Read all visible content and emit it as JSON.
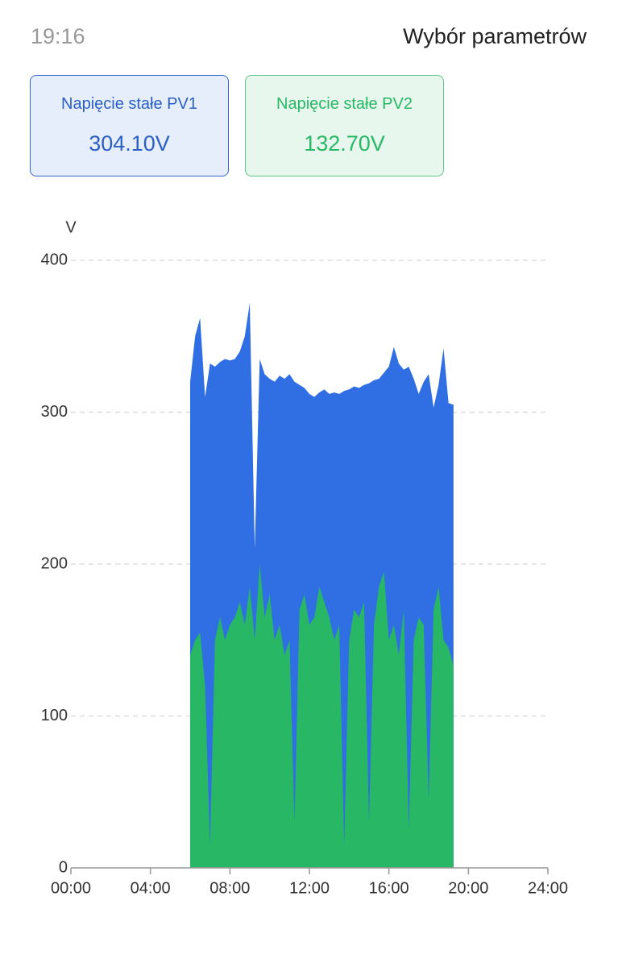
{
  "header": {
    "time": "19:16",
    "title": "Wybór parametrów"
  },
  "cards": [
    {
      "label": "Napięcie stałe PV1",
      "value": "304.10V"
    },
    {
      "label": "Napięcie stałe PV2",
      "value": "132.70V"
    }
  ],
  "chart_data": {
    "type": "area",
    "y_label": "V",
    "x": [
      6.0,
      6.25,
      6.5,
      6.75,
      7.0,
      7.25,
      7.5,
      7.75,
      8.0,
      8.25,
      8.5,
      8.75,
      9.0,
      9.25,
      9.5,
      9.75,
      10.0,
      10.25,
      10.5,
      10.75,
      11.0,
      11.25,
      11.5,
      11.75,
      12.0,
      12.25,
      12.5,
      12.75,
      13.0,
      13.25,
      13.5,
      13.75,
      14.0,
      14.25,
      14.5,
      14.75,
      15.0,
      15.25,
      15.5,
      15.75,
      16.0,
      16.25,
      16.5,
      16.75,
      17.0,
      17.25,
      17.5,
      17.75,
      18.0,
      18.25,
      18.5,
      18.75,
      19.0,
      19.25
    ],
    "series": [
      {
        "color": "#306ee3",
        "values": [
          320,
          350,
          362,
          310,
          332,
          330,
          333,
          335,
          334,
          335,
          340,
          350,
          372,
          210,
          335,
          325,
          322,
          320,
          324,
          322,
          325,
          320,
          318,
          316,
          312,
          310,
          313,
          315,
          312,
          313,
          312,
          314,
          315,
          317,
          316,
          318,
          319,
          321,
          322,
          326,
          330,
          343,
          332,
          328,
          330,
          322,
          312,
          320,
          325,
          303,
          318,
          342,
          306,
          305
        ]
      },
      {
        "color": "#28b865",
        "values": [
          140,
          150,
          155,
          120,
          15,
          150,
          165,
          150,
          160,
          165,
          175,
          160,
          185,
          150,
          200,
          165,
          180,
          150,
          160,
          140,
          150,
          30,
          170,
          180,
          160,
          165,
          185,
          175,
          165,
          150,
          160,
          15,
          150,
          170,
          165,
          175,
          30,
          160,
          185,
          195,
          150,
          160,
          140,
          170,
          25,
          150,
          165,
          160,
          45,
          170,
          185,
          150,
          145,
          133
        ]
      }
    ],
    "xlim": [
      0,
      24
    ],
    "xticks": [
      {
        "value": 0,
        "label": "00:00"
      },
      {
        "value": 4,
        "label": "04:00"
      },
      {
        "value": 8,
        "label": "08:00"
      },
      {
        "value": 12,
        "label": "12:00"
      },
      {
        "value": 16,
        "label": "16:00"
      },
      {
        "value": 20,
        "label": "20:00"
      },
      {
        "value": 24,
        "label": "24:00"
      }
    ],
    "ylim": [
      0,
      400
    ],
    "yticks": [
      0,
      100,
      200,
      300,
      400
    ],
    "grid": true
  }
}
